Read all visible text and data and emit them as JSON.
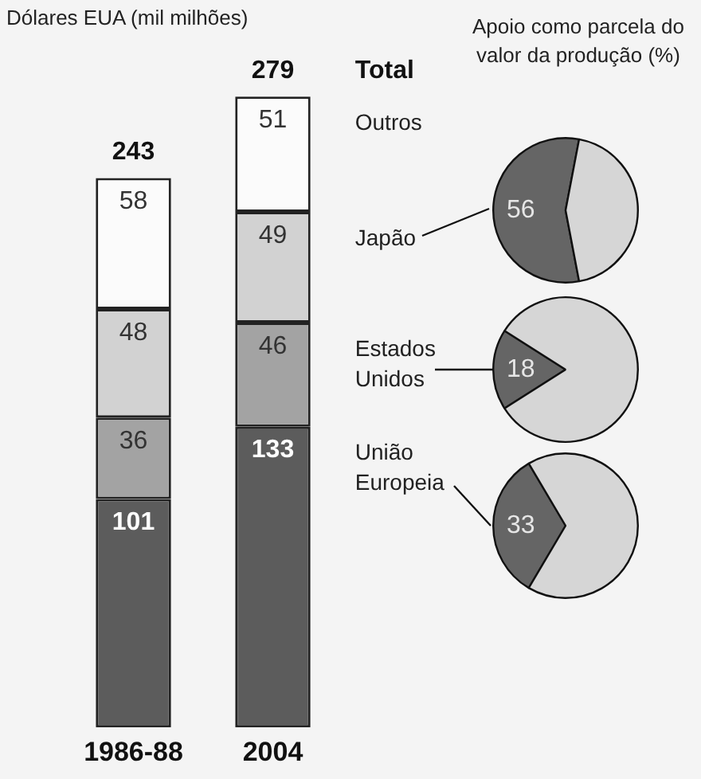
{
  "chart_data": [
    {
      "type": "bar",
      "stacked": true,
      "ylabel": "Dólares EUA (mil milhões)",
      "categories": [
        "1986-88",
        "2004"
      ],
      "series": [
        {
          "name": "União Europeia",
          "color": "#5c5c5c",
          "values": [
            101,
            133
          ]
        },
        {
          "name": "Estados Unidos",
          "color": "#a3a3a3",
          "values": [
            36,
            46
          ]
        },
        {
          "name": "Japão",
          "color": "#d2d2d2",
          "values": [
            48,
            49
          ]
        },
        {
          "name": "Outros",
          "color": "#fbfbfb",
          "values": [
            58,
            51
          ]
        }
      ],
      "data_labels": true,
      "totals": [
        "243",
        "279"
      ],
      "annotations": [
        "Total"
      ]
    },
    {
      "type": "pie",
      "title": "Apoio como parcela do valor da produção (%)",
      "categories": [
        null,
        null
      ],
      "values": [
        56,
        44
      ],
      "colors": [
        "#656565",
        "#d6d6d6"
      ],
      "value_labels": [
        "56",
        null
      ]
    },
    {
      "type": "pie",
      "categories": [
        null,
        null
      ],
      "values": [
        18,
        82
      ],
      "colors": [
        "#656565",
        "#d6d6d6"
      ],
      "value_labels": [
        "18",
        null
      ]
    },
    {
      "type": "pie",
      "categories": [
        null,
        null
      ],
      "values": [
        33,
        67
      ],
      "colors": [
        "#656565",
        "#d6d6d6"
      ],
      "value_labels": [
        "33",
        null
      ]
    }
  ]
}
